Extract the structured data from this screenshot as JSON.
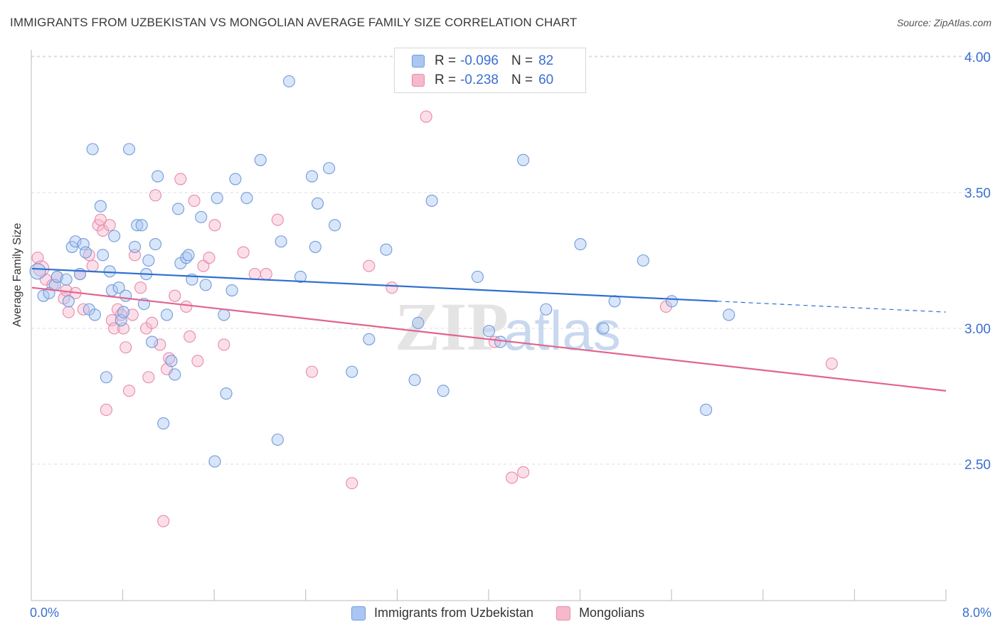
{
  "header": {
    "title": "IMMIGRANTS FROM UZBEKISTAN VS MONGOLIAN AVERAGE FAMILY SIZE CORRELATION CHART",
    "source": "Source: ZipAtlas.com"
  },
  "legend": {
    "series1": {
      "r_label": "R =",
      "r_value": "-0.096",
      "n_label": "N =",
      "n_value": "82"
    },
    "series2": {
      "r_label": "R =",
      "r_value": "-0.238",
      "n_label": "N =",
      "n_value": "60"
    }
  },
  "watermark": {
    "zip": "ZIP",
    "atlas": "atlas"
  },
  "colors": {
    "blue_fill": "#aac6f2",
    "blue_stroke": "#6f9bdc",
    "blue_line": "#2f6fd0",
    "pink_fill": "#f7b8cc",
    "pink_stroke": "#e889a8",
    "pink_line": "#e0648f",
    "axis_text": "#3a6fd0",
    "grid": "#dcdcdc"
  },
  "chart_data": {
    "type": "scatter",
    "title": "IMMIGRANTS FROM UZBEKISTAN VS MONGOLIAN AVERAGE FAMILY SIZE CORRELATION CHART",
    "xlabel": "",
    "ylabel": "Average Family Size",
    "xlim": [
      0.0,
      8.0
    ],
    "ylim": [
      2.0,
      4.05
    ],
    "x_tick_labels": [
      "0.0%",
      "8.0%"
    ],
    "y_ticks": [
      2.5,
      3.0,
      3.5,
      4.0
    ],
    "y_tick_labels": [
      "2.50",
      "3.00",
      "3.50",
      "4.00"
    ],
    "grid": true,
    "series": [
      {
        "name": "Immigrants from Uzbekistan",
        "color": "#6f9bdc",
        "trend": {
          "x": [
            0.0,
            6.0
          ],
          "y": [
            3.22,
            3.1
          ],
          "dashed_to": [
            8.0,
            3.06
          ]
        },
        "points": [
          [
            0.05,
            3.21
          ],
          [
            0.1,
            3.12
          ],
          [
            0.15,
            3.13
          ],
          [
            0.2,
            3.16
          ],
          [
            0.22,
            3.19
          ],
          [
            0.3,
            3.18
          ],
          [
            0.32,
            3.1
          ],
          [
            0.35,
            3.3
          ],
          [
            0.38,
            3.32
          ],
          [
            0.42,
            3.2
          ],
          [
            0.45,
            3.31
          ],
          [
            0.47,
            3.28
          ],
          [
            0.5,
            3.07
          ],
          [
            0.53,
            3.66
          ],
          [
            0.55,
            3.05
          ],
          [
            0.6,
            3.45
          ],
          [
            0.62,
            3.27
          ],
          [
            0.65,
            2.82
          ],
          [
            0.68,
            3.21
          ],
          [
            0.7,
            3.14
          ],
          [
            0.72,
            3.34
          ],
          [
            0.76,
            3.15
          ],
          [
            0.78,
            3.03
          ],
          [
            0.8,
            3.06
          ],
          [
            0.82,
            3.12
          ],
          [
            0.85,
            3.66
          ],
          [
            0.9,
            3.3
          ],
          [
            0.92,
            3.38
          ],
          [
            0.96,
            3.38
          ],
          [
            0.98,
            3.09
          ],
          [
            1.0,
            3.2
          ],
          [
            1.02,
            3.25
          ],
          [
            1.05,
            2.95
          ],
          [
            1.08,
            3.31
          ],
          [
            1.1,
            3.56
          ],
          [
            1.15,
            2.65
          ],
          [
            1.18,
            3.05
          ],
          [
            1.22,
            2.88
          ],
          [
            1.25,
            2.83
          ],
          [
            1.28,
            3.44
          ],
          [
            1.3,
            3.24
          ],
          [
            1.35,
            3.26
          ],
          [
            1.37,
            3.27
          ],
          [
            1.4,
            3.18
          ],
          [
            1.48,
            3.41
          ],
          [
            1.52,
            3.16
          ],
          [
            1.6,
            2.51
          ],
          [
            1.62,
            3.48
          ],
          [
            1.68,
            3.05
          ],
          [
            1.7,
            2.76
          ],
          [
            1.75,
            3.14
          ],
          [
            1.78,
            3.55
          ],
          [
            1.88,
            3.48
          ],
          [
            2.0,
            3.62
          ],
          [
            2.15,
            2.59
          ],
          [
            2.18,
            3.32
          ],
          [
            2.25,
            3.91
          ],
          [
            2.35,
            3.19
          ],
          [
            2.45,
            3.56
          ],
          [
            2.48,
            3.3
          ],
          [
            2.5,
            3.46
          ],
          [
            2.6,
            3.59
          ],
          [
            2.65,
            3.38
          ],
          [
            2.8,
            2.84
          ],
          [
            2.95,
            2.96
          ],
          [
            3.1,
            3.29
          ],
          [
            3.35,
            2.81
          ],
          [
            3.38,
            3.02
          ],
          [
            3.5,
            3.47
          ],
          [
            3.6,
            2.77
          ],
          [
            3.9,
            3.19
          ],
          [
            4.0,
            2.99
          ],
          [
            4.1,
            2.95
          ],
          [
            4.3,
            3.62
          ],
          [
            4.5,
            3.07
          ],
          [
            4.8,
            3.31
          ],
          [
            5.0,
            3.0
          ],
          [
            5.1,
            3.1
          ],
          [
            5.35,
            3.25
          ],
          [
            5.6,
            3.1
          ],
          [
            5.9,
            2.7
          ],
          [
            6.1,
            3.05
          ]
        ]
      },
      {
        "name": "Mongolians",
        "color": "#e889a8",
        "trend": {
          "x": [
            0.0,
            8.0
          ],
          "y": [
            3.15,
            2.77
          ]
        },
        "points": [
          [
            0.05,
            3.26
          ],
          [
            0.12,
            3.18
          ],
          [
            0.18,
            3.16
          ],
          [
            0.22,
            3.19
          ],
          [
            0.28,
            3.11
          ],
          [
            0.3,
            3.14
          ],
          [
            0.32,
            3.06
          ],
          [
            0.38,
            3.13
          ],
          [
            0.42,
            3.2
          ],
          [
            0.45,
            3.07
          ],
          [
            0.5,
            3.27
          ],
          [
            0.53,
            3.23
          ],
          [
            0.58,
            3.38
          ],
          [
            0.6,
            3.4
          ],
          [
            0.62,
            3.36
          ],
          [
            0.65,
            2.7
          ],
          [
            0.68,
            3.38
          ],
          [
            0.7,
            3.03
          ],
          [
            0.72,
            3.0
          ],
          [
            0.75,
            3.07
          ],
          [
            0.78,
            3.05
          ],
          [
            0.8,
            3.0
          ],
          [
            0.82,
            2.93
          ],
          [
            0.85,
            2.77
          ],
          [
            0.88,
            3.05
          ],
          [
            0.9,
            3.27
          ],
          [
            0.95,
            3.15
          ],
          [
            1.0,
            3.0
          ],
          [
            1.02,
            2.82
          ],
          [
            1.05,
            3.02
          ],
          [
            1.08,
            3.49
          ],
          [
            1.12,
            2.94
          ],
          [
            1.15,
            2.29
          ],
          [
            1.18,
            2.85
          ],
          [
            1.2,
            2.89
          ],
          [
            1.25,
            3.12
          ],
          [
            1.3,
            3.55
          ],
          [
            1.35,
            3.08
          ],
          [
            1.38,
            2.97
          ],
          [
            1.42,
            3.47
          ],
          [
            1.45,
            2.88
          ],
          [
            1.5,
            3.23
          ],
          [
            1.55,
            3.26
          ],
          [
            1.6,
            3.38
          ],
          [
            1.68,
            2.94
          ],
          [
            1.85,
            3.28
          ],
          [
            1.95,
            3.2
          ],
          [
            2.05,
            3.2
          ],
          [
            2.15,
            3.4
          ],
          [
            2.45,
            2.84
          ],
          [
            2.8,
            2.43
          ],
          [
            2.95,
            3.23
          ],
          [
            3.15,
            3.15
          ],
          [
            3.45,
            3.78
          ],
          [
            4.05,
            2.95
          ],
          [
            4.2,
            2.45
          ],
          [
            4.3,
            2.47
          ],
          [
            5.55,
            3.08
          ],
          [
            7.0,
            2.87
          ],
          [
            0.08,
            3.22
          ]
        ]
      }
    ]
  },
  "bottom_legend": {
    "series1_label": "Immigrants from Uzbekistan",
    "series2_label": "Mongolians"
  }
}
